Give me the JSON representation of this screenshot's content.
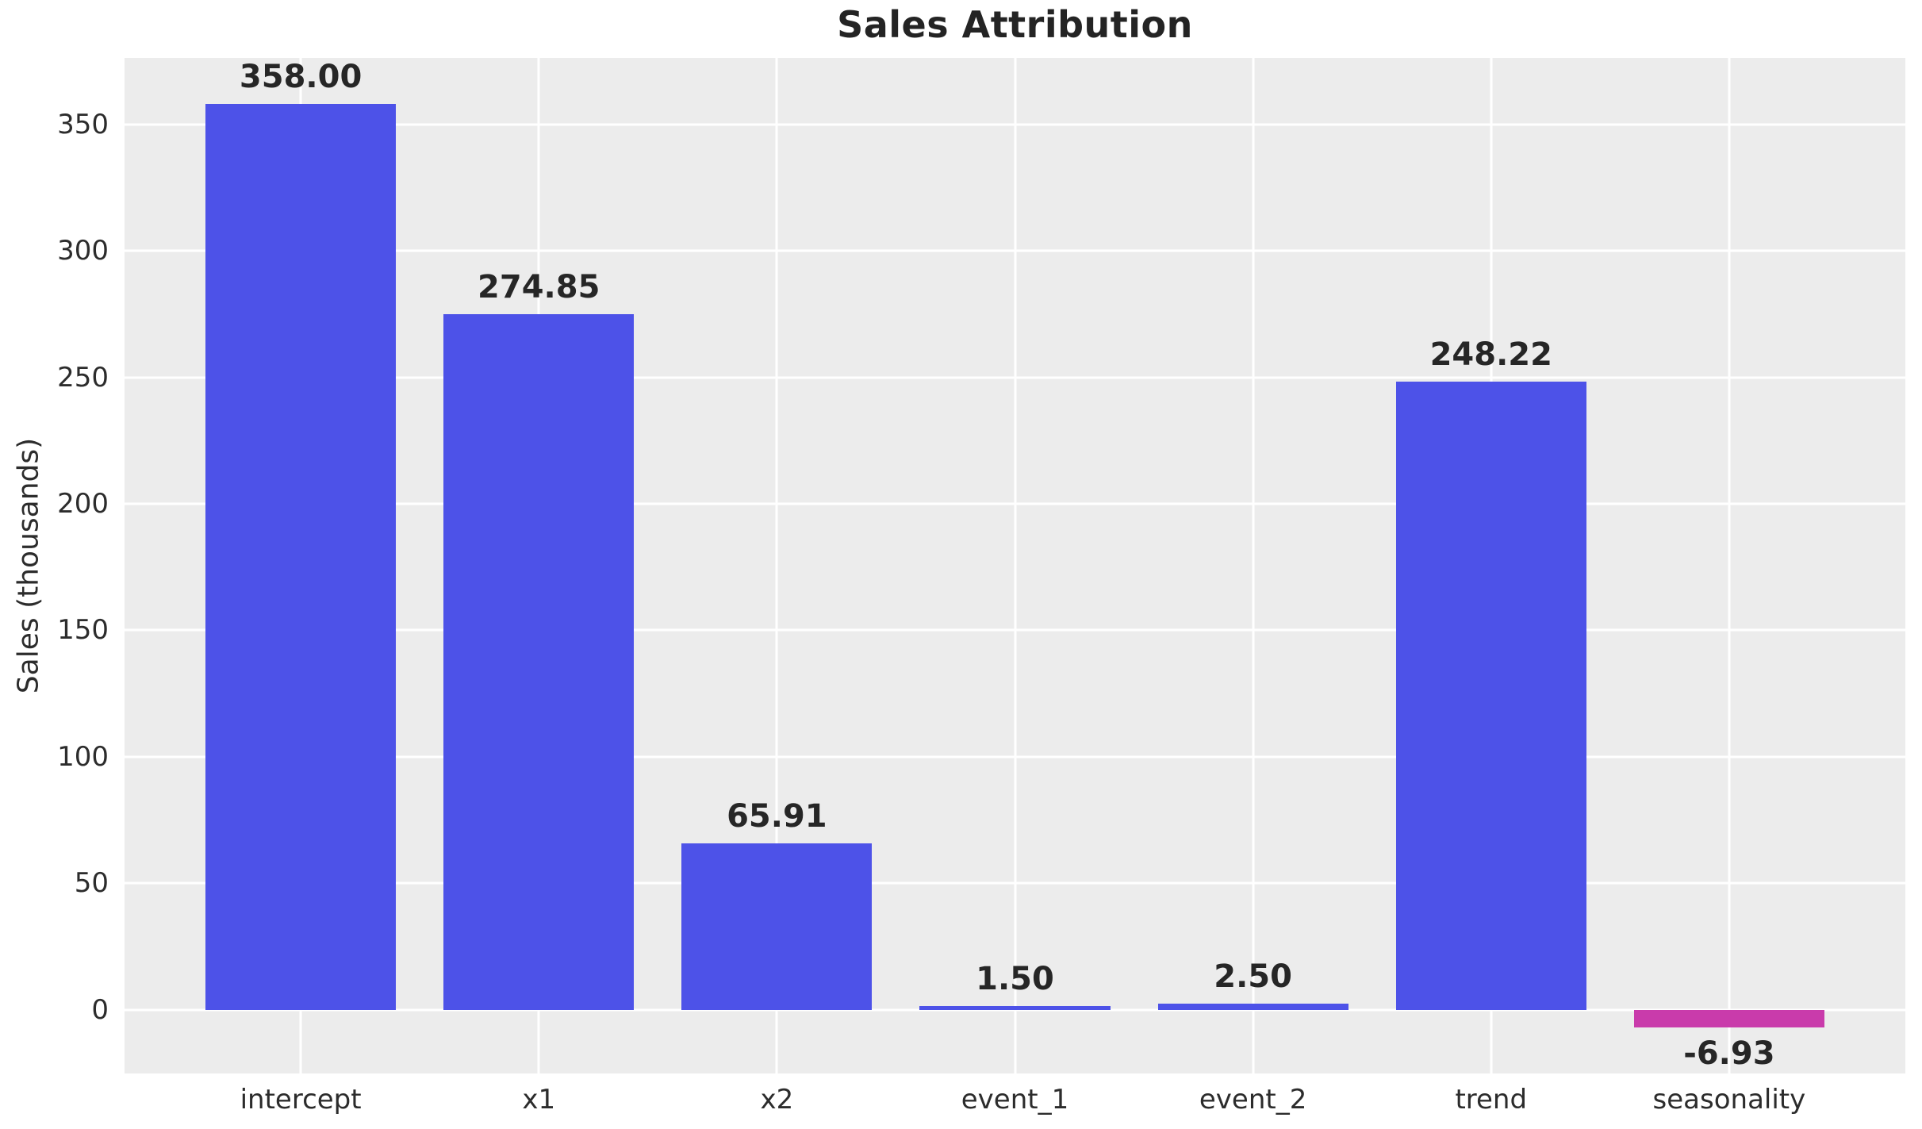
{
  "chart_data": {
    "type": "bar",
    "title": "Sales Attribution",
    "xlabel": "",
    "ylabel": "Sales (thousands)",
    "categories": [
      "intercept",
      "x1",
      "x2",
      "event_1",
      "event_2",
      "trend",
      "seasonality"
    ],
    "values": [
      358.0,
      274.85,
      65.91,
      1.5,
      2.5,
      248.22,
      -6.93
    ],
    "value_labels": [
      "358.00",
      "274.85",
      "65.91",
      "1.50",
      "2.50",
      "248.22",
      "-6.93"
    ],
    "bar_colors": [
      "#4d52e8",
      "#4d52e8",
      "#4d52e8",
      "#4d52e8",
      "#4d52e8",
      "#4d52e8",
      "#c93bab"
    ],
    "yticks": [
      0,
      50,
      100,
      150,
      200,
      250,
      300,
      350
    ],
    "ytick_labels": [
      "0",
      "50",
      "100",
      "150",
      "200",
      "250",
      "300",
      "350"
    ],
    "ylim": [
      -25.2,
      376.3
    ],
    "xlim": [
      -0.74,
      6.74
    ],
    "bar_width": 0.8,
    "grid": true,
    "legend_position": "none",
    "colors": {
      "positive_bar": "#4d52e8",
      "negative_bar": "#c93bab",
      "plot_background": "#ececec",
      "gridline": "#ffffff",
      "text": "#2c2c2c",
      "title_text": "#242424"
    }
  }
}
